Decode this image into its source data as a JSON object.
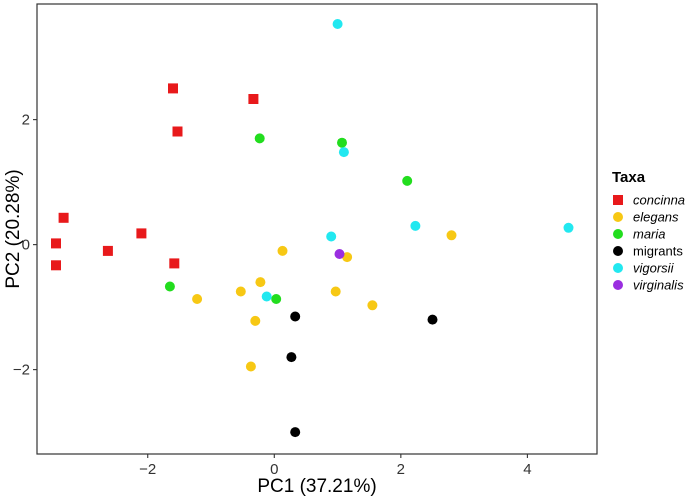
{
  "chart_data": {
    "type": "scatter",
    "xlabel": "PC1 (37.21%)",
    "ylabel": "PC2 (20.28%)",
    "xlim": [
      -3.75,
      5.1
    ],
    "ylim": [
      -3.35,
      3.85
    ],
    "xticks": [
      -2,
      0,
      2,
      4
    ],
    "yticks": [
      -2,
      0,
      2
    ],
    "xtick_labels": [
      "−2",
      "0",
      "2",
      "4"
    ],
    "ytick_labels": [
      "−2",
      "0",
      "2"
    ],
    "grid": false,
    "legend": {
      "title": "Taxa",
      "placement": "right"
    },
    "series": [
      {
        "name": "concinna",
        "marker": "square",
        "italic": true,
        "color": "#e8191b",
        "points": [
          {
            "x": -1.6,
            "y": 2.5
          },
          {
            "x": -0.33,
            "y": 2.33
          },
          {
            "x": -1.53,
            "y": 1.81
          },
          {
            "x": -3.33,
            "y": 0.43
          },
          {
            "x": -2.1,
            "y": 0.18
          },
          {
            "x": -3.45,
            "y": 0.02
          },
          {
            "x": -2.63,
            "y": -0.1
          },
          {
            "x": -3.45,
            "y": -0.33
          },
          {
            "x": -1.58,
            "y": -0.3
          }
        ]
      },
      {
        "name": "elegans",
        "marker": "circle",
        "italic": true,
        "color": "#f7c814",
        "points": [
          {
            "x": 0.13,
            "y": -0.1
          },
          {
            "x": 2.8,
            "y": 0.15
          },
          {
            "x": 1.15,
            "y": -0.2
          },
          {
            "x": -0.22,
            "y": -0.6
          },
          {
            "x": -0.53,
            "y": -0.75
          },
          {
            "x": -1.22,
            "y": -0.87
          },
          {
            "x": 0.97,
            "y": -0.75
          },
          {
            "x": 1.55,
            "y": -0.97
          },
          {
            "x": -0.3,
            "y": -1.22
          },
          {
            "x": -0.37,
            "y": -1.95
          }
        ]
      },
      {
        "name": "maria",
        "marker": "circle",
        "italic": true,
        "color": "#22dd1e",
        "points": [
          {
            "x": -0.23,
            "y": 1.7
          },
          {
            "x": 1.07,
            "y": 1.63
          },
          {
            "x": 2.1,
            "y": 1.02
          },
          {
            "x": -1.65,
            "y": -0.67
          },
          {
            "x": 0.03,
            "y": -0.87
          }
        ]
      },
      {
        "name": "migrants",
        "marker": "circle",
        "italic": false,
        "color": "#000000",
        "points": [
          {
            "x": 0.33,
            "y": -1.15
          },
          {
            "x": 2.5,
            "y": -1.2
          },
          {
            "x": 0.27,
            "y": -1.8
          },
          {
            "x": 0.33,
            "y": -3.0
          }
        ]
      },
      {
        "name": "vigorsii",
        "marker": "circle",
        "italic": true,
        "color": "#22e8f0",
        "points": [
          {
            "x": 1.0,
            "y": 3.53
          },
          {
            "x": 1.1,
            "y": 1.48
          },
          {
            "x": 2.23,
            "y": 0.3
          },
          {
            "x": 4.65,
            "y": 0.27
          },
          {
            "x": 0.9,
            "y": 0.13
          },
          {
            "x": -0.12,
            "y": -0.83
          }
        ]
      },
      {
        "name": "virginalis",
        "marker": "circle",
        "italic": true,
        "color": "#9a2ee0",
        "points": [
          {
            "x": 1.03,
            "y": -0.15
          }
        ]
      }
    ]
  }
}
